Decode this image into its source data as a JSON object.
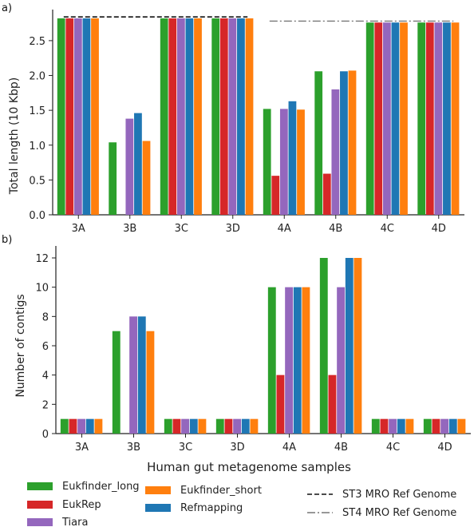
{
  "colors": {
    "Eukfinder_long": "#2ca02c",
    "EukRep": "#d62728",
    "Tiara": "#9467bd",
    "Refmapping": "#1f77b4",
    "Eukfinder_short": "#ff7f0e"
  },
  "chart_data": [
    {
      "panel": "a)",
      "type": "bar",
      "ylabel": "Total length (10 Kbp)",
      "ylim": [
        0,
        2.9
      ],
      "yticks": [
        "0.0",
        "0.5",
        "1.0",
        "1.5",
        "2.0",
        "2.5"
      ],
      "categories": [
        "3A",
        "3B",
        "3C",
        "3D",
        "4A",
        "4B",
        "4C",
        "4D"
      ],
      "series": [
        {
          "name": "Eukfinder_long",
          "values": [
            2.82,
            1.04,
            2.82,
            2.82,
            1.52,
            2.06,
            2.76,
            2.76
          ]
        },
        {
          "name": "EukRep",
          "values": [
            2.82,
            0,
            2.82,
            2.82,
            0.56,
            0.59,
            2.76,
            2.76
          ]
        },
        {
          "name": "Tiara",
          "values": [
            2.82,
            1.38,
            2.82,
            2.82,
            1.52,
            1.8,
            2.76,
            2.76
          ]
        },
        {
          "name": "Refmapping",
          "values": [
            2.82,
            1.46,
            2.82,
            2.82,
            1.63,
            2.06,
            2.76,
            2.76
          ]
        },
        {
          "name": "Eukfinder_short",
          "values": [
            2.82,
            1.06,
            2.82,
            2.82,
            1.51,
            2.07,
            2.76,
            2.76
          ]
        }
      ],
      "reference_lines": [
        {
          "name": "ST3 MRO Ref Genome",
          "value": 2.84,
          "x_range": [
            "3A",
            "3D"
          ],
          "style": "dashed"
        },
        {
          "name": "ST4 MRO Ref Genome",
          "value": 2.78,
          "x_range": [
            "4A",
            "4D"
          ],
          "style": "dashdot"
        }
      ]
    },
    {
      "panel": "b)",
      "type": "bar",
      "ylabel": "Number of contigs",
      "xlabel": "Human gut metagenome samples",
      "ylim": [
        0,
        12.6
      ],
      "yticks": [
        "0",
        "2",
        "4",
        "6",
        "8",
        "10",
        "12"
      ],
      "categories": [
        "3A",
        "3B",
        "3C",
        "3D",
        "4A",
        "4B",
        "4C",
        "4D"
      ],
      "series": [
        {
          "name": "Eukfinder_long",
          "values": [
            1,
            7,
            1,
            1,
            10,
            12,
            1,
            1
          ]
        },
        {
          "name": "EukRep",
          "values": [
            1,
            0,
            1,
            1,
            4,
            4,
            1,
            1
          ]
        },
        {
          "name": "Tiara",
          "values": [
            1,
            8,
            1,
            1,
            10,
            10,
            1,
            1
          ]
        },
        {
          "name": "Refmapping",
          "values": [
            1,
            8,
            1,
            1,
            10,
            12,
            1,
            1
          ]
        },
        {
          "name": "Eukfinder_short",
          "values": [
            1,
            7,
            1,
            1,
            10,
            12,
            1,
            1
          ]
        }
      ]
    }
  ],
  "legend": {
    "placement": "bottom",
    "entries": [
      {
        "label": "Eukfinder_long",
        "kind": "patch"
      },
      {
        "label": "EukRep",
        "kind": "patch"
      },
      {
        "label": "Tiara",
        "kind": "patch"
      },
      {
        "label": "Eukfinder_short",
        "kind": "patch"
      },
      {
        "label": "Refmapping",
        "kind": "patch"
      },
      {
        "label": "ST3 MRO Ref Genome",
        "kind": "dashed"
      },
      {
        "label": "ST4 MRO Ref Genome",
        "kind": "dashdot"
      }
    ]
  }
}
